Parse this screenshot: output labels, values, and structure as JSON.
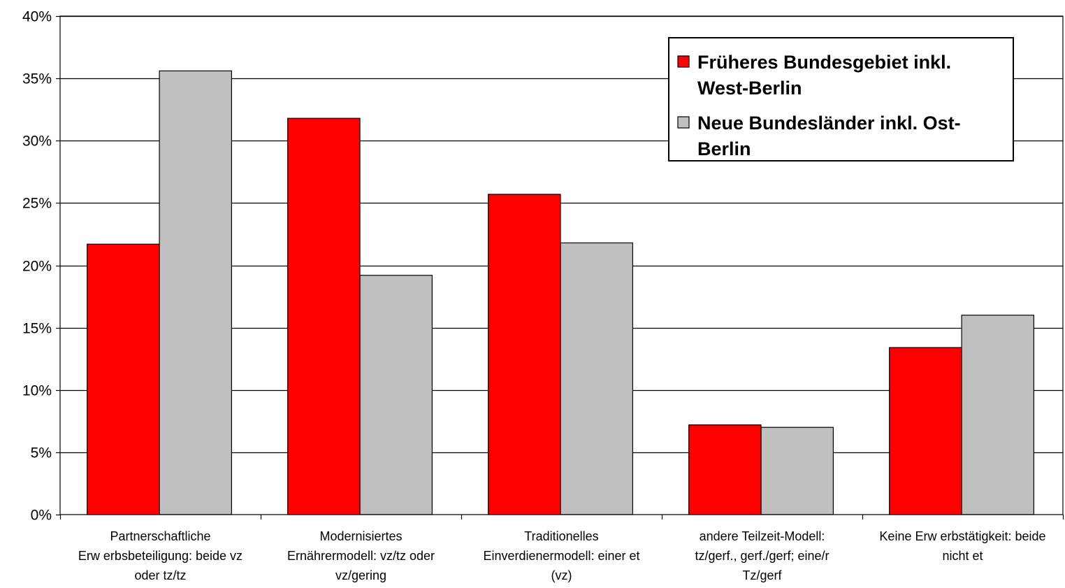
{
  "chart_data": {
    "type": "bar",
    "categories": [
      [
        "Partnerschaftliche",
        "Erw erbsbeteiligung: beide vz",
        "oder tz/tz"
      ],
      [
        "Modernisiertes",
        "Ernährermodell: vz/tz oder",
        "vz/gering"
      ],
      [
        "Traditionelles",
        "Einverdienermodell: einer et",
        "(vz)"
      ],
      [
        "andere Teilzeit-Modell:",
        "tz/gerf., gerf./gerf; eine/r",
        "Tz/gerf"
      ],
      [
        "Keine Erw erbstätigkeit: beide",
        "nicht et"
      ]
    ],
    "series": [
      {
        "name": "Früheres Bundesgebiet inkl. West-Berlin",
        "legend_lines": [
          "Früheres Bundesgebiet inkl.",
          "West-Berlin"
        ],
        "color": "#ff0000",
        "values": [
          21.7,
          31.8,
          25.7,
          7.2,
          13.4
        ]
      },
      {
        "name": "Neue Bundesländer inkl. Ost-Berlin",
        "legend_lines": [
          "Neue Bundesländer inkl. Ost-",
          "Berlin"
        ],
        "color": "#c0c0c0",
        "values": [
          35.6,
          19.2,
          21.8,
          7.0,
          16.0
        ]
      }
    ],
    "ylim": [
      0,
      40
    ],
    "yticks": [
      0,
      5,
      10,
      15,
      20,
      25,
      30,
      35,
      40
    ],
    "ytick_labels": [
      "0%",
      "5%",
      "10%",
      "15%",
      "20%",
      "25%",
      "30%",
      "35%",
      "40%"
    ],
    "grid": true,
    "legend_position": "top-right",
    "title": "",
    "xlabel": "",
    "ylabel": ""
  }
}
